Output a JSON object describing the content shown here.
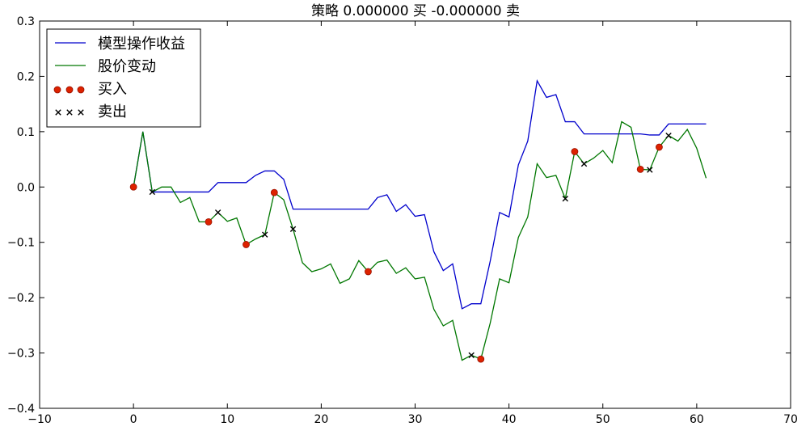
{
  "chart_data": {
    "type": "line",
    "title": "策略 0.000000 买  -0.000000 卖",
    "xlabel": "",
    "ylabel": "",
    "xlim": [
      -10,
      70
    ],
    "ylim": [
      -0.4,
      0.3
    ],
    "xticks": [
      -10,
      0,
      10,
      20,
      30,
      40,
      50,
      60,
      70
    ],
    "yticks": [
      -0.4,
      -0.3,
      -0.2,
      -0.1,
      0.0,
      0.1,
      0.2,
      0.3
    ],
    "xtick_labels": [
      "−10",
      "0",
      "10",
      "20",
      "30",
      "40",
      "50",
      "60",
      "70"
    ],
    "ytick_labels": [
      "−0.4",
      "−0.3",
      "−0.2",
      "−0.1",
      "0.0",
      "0.1",
      "0.2",
      "0.3"
    ],
    "grid": false,
    "legend_position": "top-left",
    "series": [
      {
        "name": "模型操作收益",
        "kind": "line",
        "color": "#0000cc",
        "x": [
          0,
          1,
          2,
          3,
          4,
          5,
          6,
          7,
          8,
          9,
          10,
          11,
          12,
          13,
          14,
          15,
          16,
          17,
          18,
          19,
          20,
          21,
          22,
          23,
          24,
          25,
          26,
          27,
          28,
          29,
          30,
          31,
          32,
          33,
          34,
          35,
          36,
          37,
          38,
          39,
          40,
          41,
          42,
          43,
          44,
          45,
          46,
          47,
          48,
          49,
          50,
          51,
          52,
          53,
          54,
          55,
          56,
          57,
          58,
          59,
          60,
          61
        ],
        "y": [
          0.0,
          0.1,
          -0.009,
          -0.009,
          -0.009,
          -0.009,
          -0.009,
          -0.009,
          -0.009,
          0.008,
          0.008,
          0.008,
          0.008,
          0.021,
          0.029,
          0.029,
          0.014,
          -0.04,
          -0.04,
          -0.04,
          -0.04,
          -0.04,
          -0.04,
          -0.04,
          -0.04,
          -0.04,
          -0.019,
          -0.014,
          -0.044,
          -0.032,
          -0.053,
          -0.05,
          -0.117,
          -0.151,
          -0.139,
          -0.22,
          -0.211,
          -0.211,
          -0.134,
          -0.046,
          -0.054,
          0.04,
          0.083,
          0.192,
          0.162,
          0.167,
          0.118,
          0.118,
          0.096,
          0.096,
          0.096,
          0.096,
          0.096,
          0.096,
          0.096,
          0.094,
          0.094,
          0.114,
          0.114,
          0.114,
          0.114,
          0.114
        ]
      },
      {
        "name": "股价变动",
        "kind": "line",
        "color": "#007700",
        "x": [
          0,
          1,
          2,
          3,
          4,
          5,
          6,
          7,
          8,
          9,
          10,
          11,
          12,
          13,
          14,
          15,
          16,
          17,
          18,
          19,
          20,
          21,
          22,
          23,
          24,
          25,
          26,
          27,
          28,
          29,
          30,
          31,
          32,
          33,
          34,
          35,
          36,
          37,
          38,
          39,
          40,
          41,
          42,
          43,
          44,
          45,
          46,
          47,
          48,
          49,
          50,
          51,
          52,
          53,
          54,
          55,
          56,
          57,
          58,
          59,
          60,
          61
        ],
        "y": [
          0.0,
          0.1,
          -0.009,
          0.0,
          0.0,
          -0.028,
          -0.019,
          -0.063,
          -0.063,
          -0.046,
          -0.062,
          -0.056,
          -0.104,
          -0.094,
          -0.086,
          -0.01,
          -0.023,
          -0.076,
          -0.137,
          -0.153,
          -0.148,
          -0.139,
          -0.174,
          -0.166,
          -0.133,
          -0.153,
          -0.136,
          -0.132,
          -0.156,
          -0.146,
          -0.166,
          -0.163,
          -0.221,
          -0.251,
          -0.241,
          -0.313,
          -0.304,
          -0.311,
          -0.246,
          -0.166,
          -0.173,
          -0.091,
          -0.054,
          0.042,
          0.017,
          0.021,
          -0.021,
          0.064,
          0.042,
          0.052,
          0.066,
          0.044,
          0.118,
          0.108,
          0.032,
          0.031,
          0.072,
          0.093,
          0.083,
          0.104,
          0.07,
          0.016
        ]
      },
      {
        "name": "买入",
        "kind": "scatter",
        "marker": "circle",
        "color": "#dd2200",
        "x": [
          0,
          8,
          12,
          15,
          25,
          37,
          47,
          54,
          56
        ],
        "y": [
          0.0,
          -0.063,
          -0.104,
          -0.01,
          -0.153,
          -0.311,
          0.064,
          0.032,
          0.072
        ]
      },
      {
        "name": "卖出",
        "kind": "scatter",
        "marker": "x",
        "color": "#000000",
        "x": [
          2,
          9,
          14,
          17,
          36,
          46,
          48,
          55,
          57
        ],
        "y": [
          -0.009,
          -0.046,
          -0.086,
          -0.076,
          -0.304,
          -0.021,
          0.042,
          0.031,
          0.093
        ]
      }
    ]
  }
}
